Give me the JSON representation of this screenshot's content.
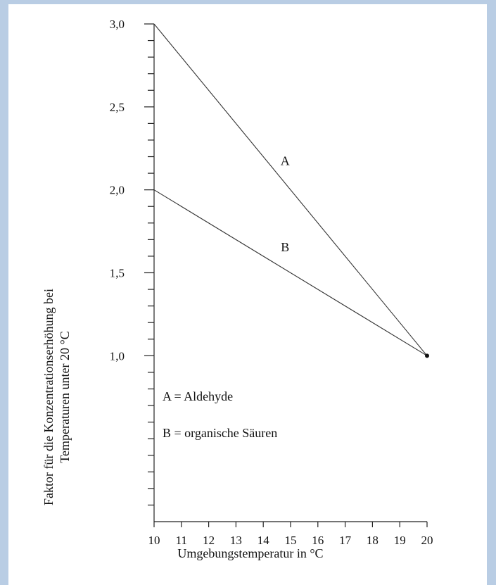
{
  "colors": {
    "page_border": "#b9cde4",
    "background": "#ffffff",
    "ink": "#222222"
  },
  "chart_data": {
    "type": "line",
    "xlabel": "Umgebungstemperatur in °C",
    "ylabel_line1": "Faktor für die Konzentrationserhöhung bei",
    "ylabel_line2": "Temperaturen unter 20 °C",
    "xlim": [
      10,
      20
    ],
    "ylim": [
      0,
      3.0
    ],
    "x_ticks": [
      10,
      11,
      12,
      13,
      14,
      15,
      16,
      17,
      18,
      19,
      20
    ],
    "x_tick_labels": [
      "10",
      "11",
      "12",
      "13",
      "14",
      "15",
      "16",
      "17",
      "18",
      "19",
      "20"
    ],
    "y_major_ticks": [
      1.0,
      1.5,
      2.0,
      2.5,
      3.0
    ],
    "y_tick_labels": [
      "1,0",
      "1,5",
      "2,0",
      "2,5",
      "3,0"
    ],
    "y_minor_step": 0.1,
    "grid": false,
    "series": [
      {
        "name": "A",
        "x": [
          10,
          20
        ],
        "values": [
          3.0,
          1.0
        ],
        "label_at": [
          14.8,
          2.15
        ]
      },
      {
        "name": "B",
        "x": [
          10,
          20
        ],
        "values": [
          2.0,
          1.0
        ],
        "label_at": [
          14.8,
          1.63
        ]
      }
    ],
    "end_marker": {
      "x": 20,
      "y": 1.0
    },
    "legend": {
      "placement": "lower-left",
      "entries": [
        "A = Aldehyde",
        "B = organische Säuren"
      ]
    }
  }
}
